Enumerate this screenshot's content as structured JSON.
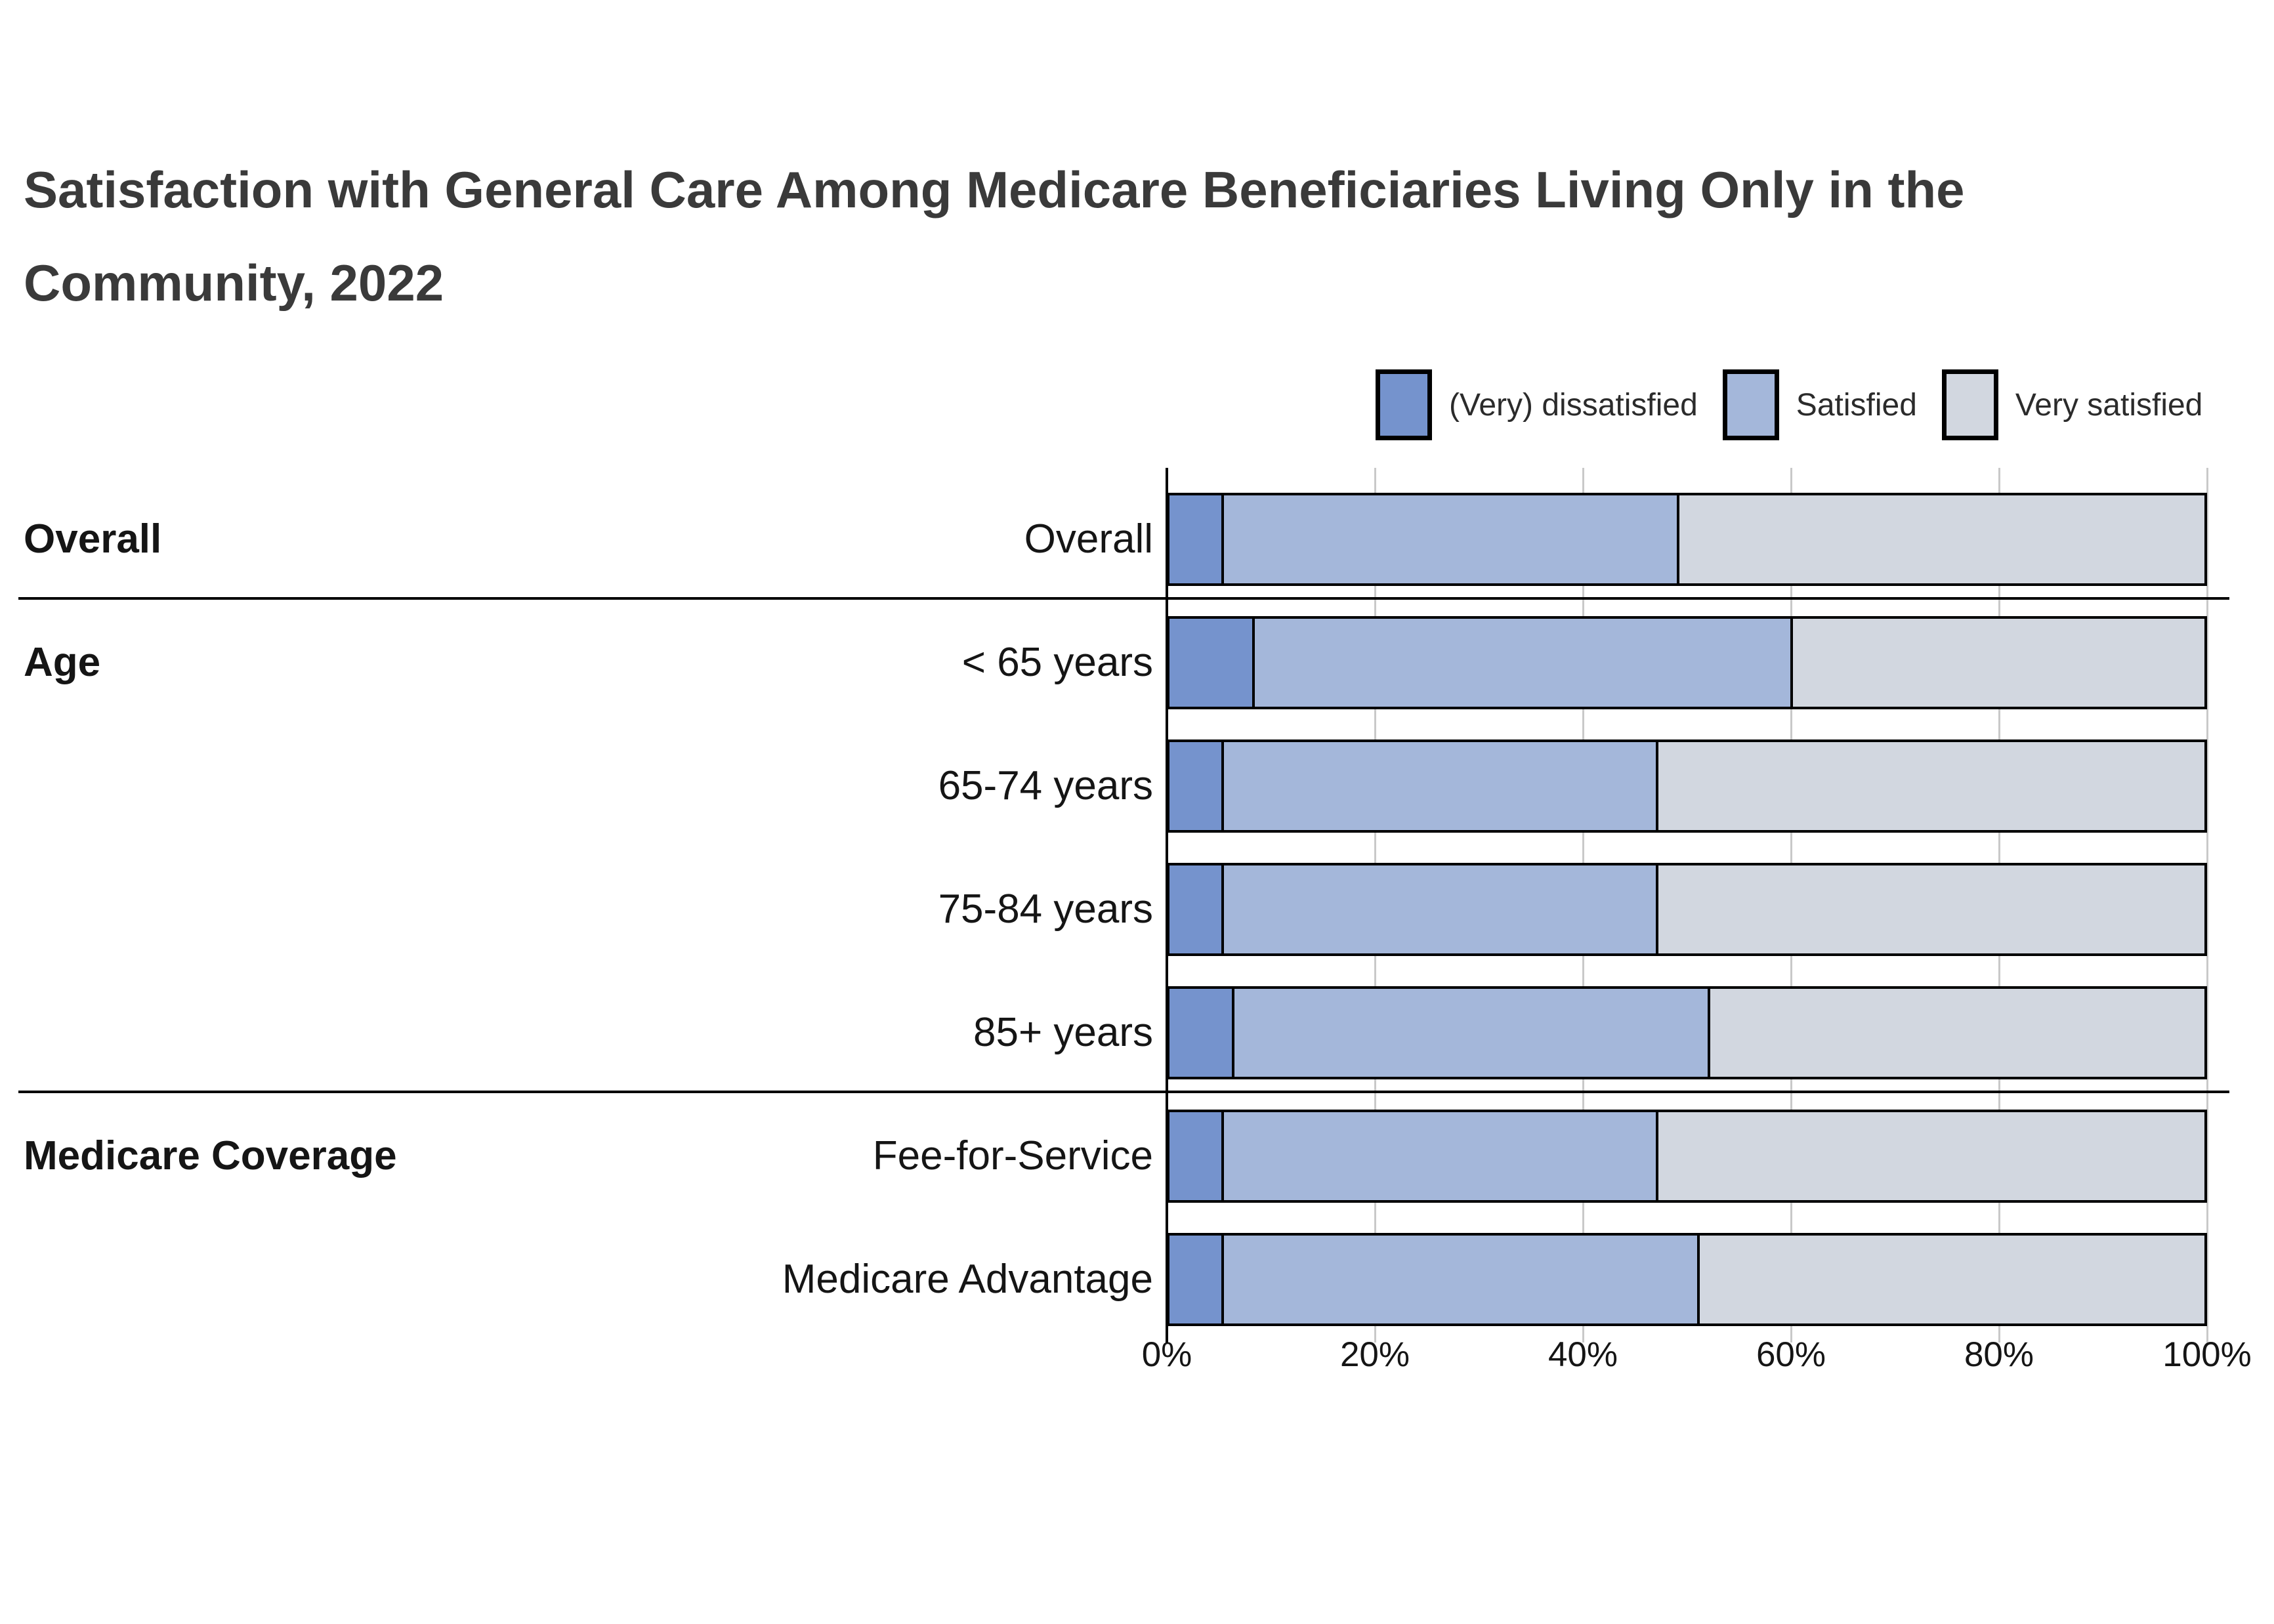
{
  "title": {
    "line1": "Satisfaction with General Care Among Medicare Beneficiaries Living Only in the",
    "line2": "Community, 2022"
  },
  "legend": {
    "items": [
      {
        "label": "(Very) dissatisfied",
        "color": "#7593CD"
      },
      {
        "label": "Satisfied",
        "color": "#A4B7DA"
      },
      {
        "label": "Very satisfied",
        "color": "#D2D7E0"
      }
    ]
  },
  "axis": {
    "ticks": [
      {
        "value": 0,
        "label": "0%"
      },
      {
        "value": 20,
        "label": "20%"
      },
      {
        "value": 40,
        "label": "40%"
      },
      {
        "value": 60,
        "label": "60%"
      },
      {
        "value": 80,
        "label": "80%"
      },
      {
        "value": 100,
        "label": "100%"
      }
    ]
  },
  "colors": {
    "dissatisfied": "#7593CD",
    "satisfied": "#A4B7DA",
    "very_satisfied": "#D2D7E0",
    "bar_border": "#000000",
    "gridline": "#c9c9c9",
    "title_text": "#3a3a3a",
    "label_text": "#151515"
  },
  "chart_data": {
    "type": "bar",
    "stacked": true,
    "orientation": "horizontal",
    "title": "Satisfaction with General Care Among Medicare Beneficiaries Living Only in the Community, 2022",
    "categories": [
      "Overall",
      "< 65 years",
      "65-74 years",
      "75-84 years",
      "85+ years",
      "Fee-for-Service",
      "Medicare Advantage"
    ],
    "groups": [
      {
        "label": "Overall",
        "rows": [
          0
        ]
      },
      {
        "label": "Age",
        "rows": [
          1,
          2,
          3,
          4
        ]
      },
      {
        "label": "Medicare Coverage",
        "rows": [
          5,
          6
        ]
      }
    ],
    "series": [
      {
        "name": "(Very) dissatisfied",
        "color": "#7593CD",
        "values": [
          5,
          8,
          5,
          5,
          6,
          5,
          5
        ]
      },
      {
        "name": "Satisfied",
        "color": "#A4B7DA",
        "values": [
          44,
          52,
          42,
          42,
          46,
          42,
          46
        ]
      },
      {
        "name": "Very satisfied",
        "color": "#D2D7E0",
        "values": [
          51,
          40,
          53,
          53,
          48,
          53,
          49
        ]
      }
    ],
    "xlabel": "",
    "ylabel": "",
    "xlim": [
      0,
      100
    ],
    "tick_format": "percent",
    "grid": true,
    "legend_position": "top-right"
  }
}
